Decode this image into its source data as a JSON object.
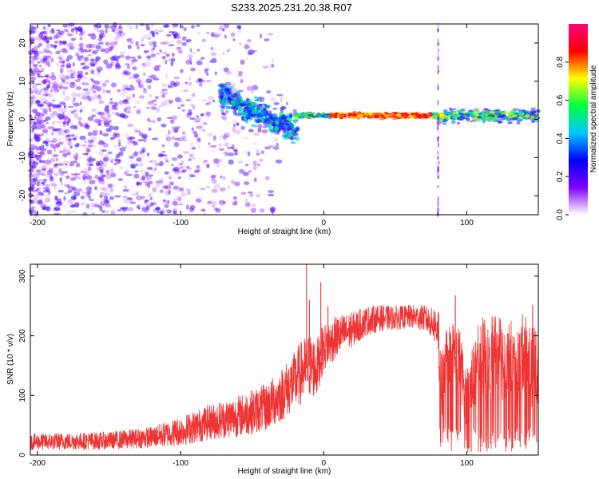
{
  "figure_title": "S233.2025.231.20.38.R07",
  "chart_data": [
    {
      "type": "heatmap",
      "title": "S233.2025.231.20.38.R07",
      "xlabel": "Height of straight line (km)",
      "ylabel": "Frequency (Hz)",
      "xlim": [
        -205,
        150
      ],
      "ylim": [
        -25,
        25
      ],
      "xticks": [
        -200,
        -100,
        0,
        100
      ],
      "xtick_labels": [
        "-200",
        "-100",
        "0",
        "100"
      ],
      "yticks": [
        -20,
        -10,
        0,
        10,
        20
      ],
      "ytick_labels": [
        "-20",
        "-10",
        "0",
        "10",
        "20"
      ],
      "grid": false,
      "colorbar": {
        "label": "Normalized spectral amplitude",
        "range": [
          0,
          1
        ],
        "ticks": [
          0.0,
          0.2,
          0.4,
          0.6,
          0.8
        ],
        "tick_labels": [
          "0.0",
          "0.2",
          "0.4",
          "0.6",
          "0.8"
        ],
        "colormap": [
          "#ffffff",
          "#8000ff",
          "#0000ff",
          "#00c8ff",
          "#00ff40",
          "#ffff00",
          "#ff0000",
          "#ff0080"
        ]
      },
      "features": [
        {
          "name": "scattered-noise",
          "x_range": [
            -205,
            -20
          ],
          "freq_range": [
            -25,
            25
          ],
          "amplitude": 0.15
        },
        {
          "name": "descending-band",
          "x_start": -72,
          "x_end": -18,
          "freq_start": 6,
          "freq_end": -3,
          "amplitude": 0.3
        },
        {
          "name": "main-line",
          "x_range": [
            -20,
            150
          ],
          "frequency": 1,
          "amplitude_peak": 0.95
        },
        {
          "name": "vertical-streak",
          "x": 80,
          "freq_range": [
            -25,
            25
          ],
          "amplitude": 0.12
        }
      ]
    },
    {
      "type": "line",
      "xlabel": "Height of straight line (km)",
      "ylabel": "SNR (10 * v/v)",
      "xlim": [
        -205,
        150
      ],
      "ylim": [
        0,
        320
      ],
      "xticks": [
        -200,
        -100,
        0,
        100
      ],
      "xtick_labels": [
        "-200",
        "-100",
        "0",
        "100"
      ],
      "yticks": [
        0,
        100,
        200,
        300
      ],
      "ytick_labels": [
        "0",
        "100",
        "200",
        "300"
      ],
      "grid": false,
      "line_color": "#ee3333",
      "envelope": {
        "x": [
          -205,
          -150,
          -120,
          -100,
          -80,
          -60,
          -40,
          -30,
          -20,
          -15,
          -10,
          -5,
          0,
          10,
          20,
          30,
          40,
          50,
          60,
          70,
          75,
          80,
          82,
          85,
          90,
          95,
          100,
          105,
          110,
          115,
          120,
          125,
          130,
          135,
          140,
          145,
          150
        ],
        "y_mid": [
          22,
          24,
          30,
          40,
          55,
          65,
          80,
          100,
          125,
          140,
          150,
          145,
          180,
          200,
          210,
          225,
          230,
          230,
          232,
          230,
          222,
          215,
          100,
          165,
          175,
          160,
          90,
          140,
          170,
          150,
          175,
          160,
          165,
          140,
          180,
          150,
          140
        ],
        "y_noise": [
          14,
          15,
          18,
          25,
          30,
          35,
          40,
          45,
          50,
          55,
          55,
          50,
          40,
          35,
          30,
          25,
          22,
          20,
          20,
          22,
          25,
          40,
          70,
          55,
          50,
          55,
          50,
          60,
          65,
          70,
          70,
          70,
          70,
          70,
          65,
          70,
          70
        ]
      },
      "spikes": [
        {
          "x": -12,
          "y": 320
        },
        {
          "x": -10,
          "y": 260
        },
        {
          "x": -2,
          "y": 290
        },
        {
          "x": 3,
          "y": 250
        },
        {
          "x": 92,
          "y": 268
        },
        {
          "x": 146,
          "y": 252
        }
      ]
    }
  ]
}
